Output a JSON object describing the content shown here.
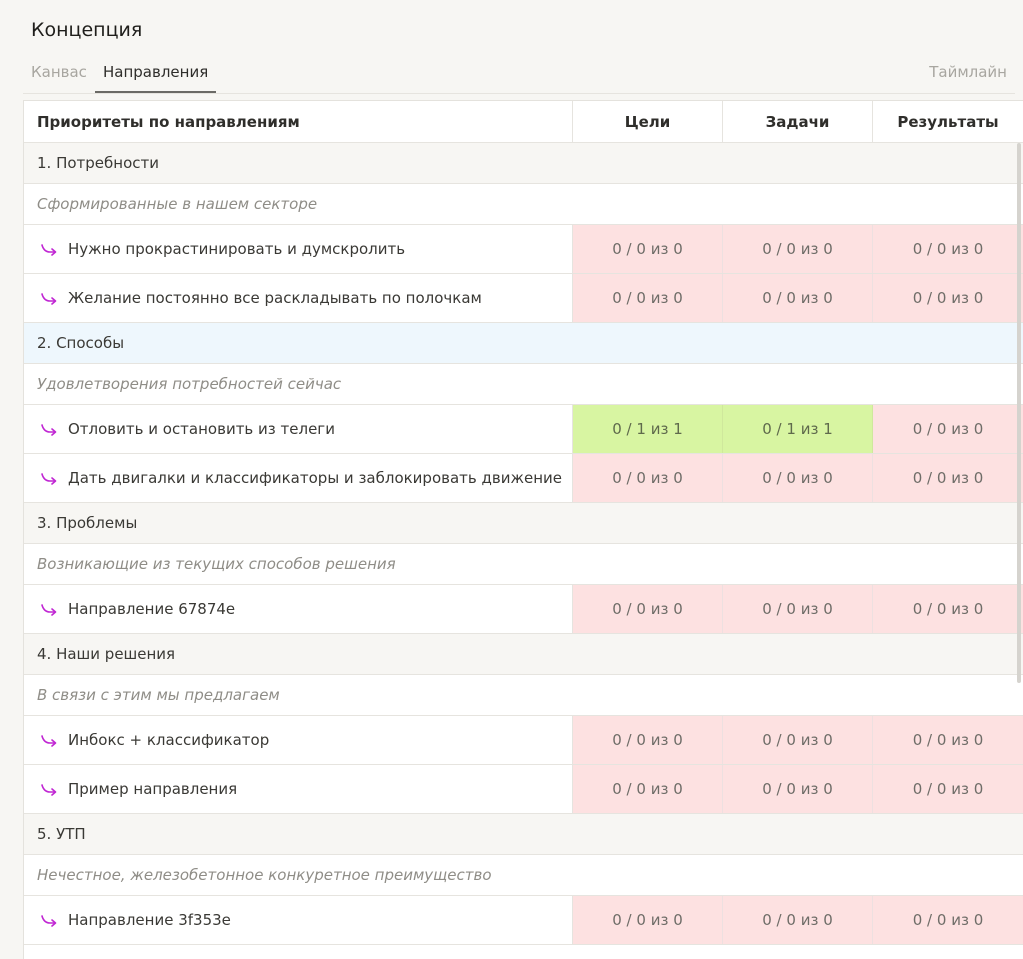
{
  "page": {
    "title": "Концепция"
  },
  "tabs": {
    "canvas": "Канвас",
    "directions": "Направления",
    "timeline": "Таймлайн"
  },
  "table": {
    "headers": {
      "main": "Приоритеты по направлениям",
      "goals": "Цели",
      "tasks": "Задачи",
      "results": "Результаты"
    },
    "colors": {
      "empty": "#fde1e1",
      "filled": "#d8f5a2",
      "arrow": "#c026d3"
    },
    "sections": [
      {
        "title": "1. Потребности",
        "subtitle": "Сформированные в нашем секторе",
        "items": [
          {
            "name": "Нужно прокрастинировать и думскролить",
            "goals": "0 / 0 из 0",
            "tasks": "0 / 0 из 0",
            "results": "0 / 0 из 0"
          },
          {
            "name": "Желание постоянно все раскладывать по полочкам",
            "goals": "0 / 0 из 0",
            "tasks": "0 / 0 из 0",
            "results": "0 / 0 из 0"
          }
        ]
      },
      {
        "title": "2. Способы",
        "subtitle": "Удовлетворения потребностей сейчас",
        "items": [
          {
            "name": "Отловить и остановить из телеги",
            "goals": "0 / 1 из 1",
            "tasks": "0 / 1 из 1",
            "results": "0 / 0 из 0"
          },
          {
            "name": "Дать двигалки и классификаторы и заблокировать движение",
            "goals": "0 / 0 из 0",
            "tasks": "0 / 0 из 0",
            "results": "0 / 0 из 0"
          }
        ]
      },
      {
        "title": "3. Проблемы",
        "subtitle": "Возникающие из текущих способов решения",
        "items": [
          {
            "name": "Направление 67874e",
            "goals": "0 / 0 из 0",
            "tasks": "0 / 0 из 0",
            "results": "0 / 0 из 0"
          }
        ]
      },
      {
        "title": "4. Наши решения",
        "subtitle": "В связи с этим мы предлагаем",
        "items": [
          {
            "name": "Инбокс + классификатор",
            "goals": "0 / 0 из 0",
            "tasks": "0 / 0 из 0",
            "results": "0 / 0 из 0"
          },
          {
            "name": "Пример направления",
            "goals": "0 / 0 из 0",
            "tasks": "0 / 0 из 0",
            "results": "0 / 0 из 0"
          }
        ]
      },
      {
        "title": "5. УТП",
        "subtitle": "Нечестное, железобетонное конкуретное преимущество",
        "items": [
          {
            "name": "Направление 3f353e",
            "goals": "0 / 0 из 0",
            "tasks": "0 / 0 из 0",
            "results": "0 / 0 из 0"
          }
        ]
      }
    ]
  }
}
